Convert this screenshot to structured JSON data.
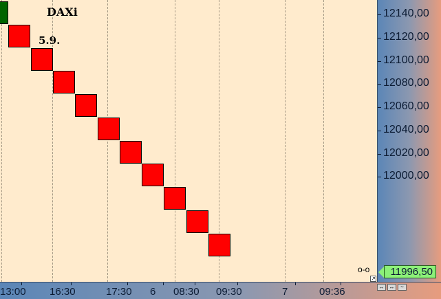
{
  "chart_data": {
    "type": "renko",
    "title": "DAXi",
    "annotations": [
      "5.9."
    ],
    "ylim": [
      11985,
      12150
    ],
    "y_ticks": [
      "12140,00",
      "12120,00",
      "12100,00",
      "12080,00",
      "12060,00",
      "12040,00",
      "12020,00",
      "12000,00"
    ],
    "y_tick_values": [
      12140,
      12120,
      12100,
      12080,
      12060,
      12040,
      12020,
      12000
    ],
    "x_ticks": [
      "13:00",
      "16:30",
      "17:30",
      "6",
      "08:30",
      "09:30",
      "7",
      "09:36"
    ],
    "last_price": "11996,50",
    "colors": {
      "up": "#006400",
      "down": "#ff0000"
    },
    "bricks": [
      {
        "direction": "up",
        "high": 12150,
        "low": 12130
      },
      {
        "direction": "down",
        "high": 12130,
        "low": 12110
      },
      {
        "direction": "down",
        "high": 12110,
        "low": 12090
      },
      {
        "direction": "down",
        "high": 12090,
        "low": 12070
      },
      {
        "direction": "down",
        "high": 12070,
        "low": 12050
      },
      {
        "direction": "down",
        "high": 12050,
        "low": 12030
      },
      {
        "direction": "down",
        "high": 12030,
        "low": 12010
      },
      {
        "direction": "down",
        "high": 12010,
        "low": 11990
      },
      {
        "direction": "down",
        "high": 11990,
        "low": 11970
      },
      {
        "direction": "down",
        "high": 11970,
        "low": 11950
      },
      {
        "direction": "down",
        "high": 11950,
        "low": 11930
      }
    ]
  },
  "icons": {
    "marker": "price-marker-icon",
    "corner": "corner-resize-icon",
    "scroll": [
      "scroll-left-icon",
      "scroll-fit-icon",
      "scroll-chart-icon"
    ]
  }
}
